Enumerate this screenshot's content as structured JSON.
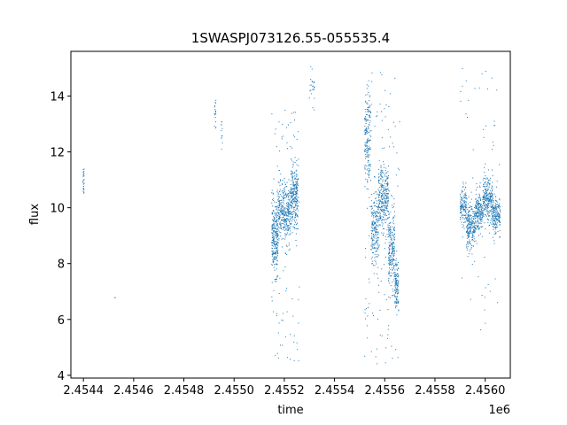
{
  "chart_data": {
    "type": "scatter",
    "title": "1SWASPJ073126.55-055535.4",
    "xlabel": "time",
    "ylabel": "flux",
    "x_offset_label": "1e6",
    "xlim": [
      2454350,
      2456100
    ],
    "ylim": [
      3.9,
      15.6
    ],
    "x_ticks": [
      2454400,
      2454600,
      2454800,
      2455000,
      2455200,
      2455400,
      2455600,
      2455800,
      2456000
    ],
    "x_tick_labels": [
      "2.4544",
      "2.4546",
      "2.4548",
      "2.4550",
      "2.4552",
      "2.4554",
      "2.4556",
      "2.4558",
      "2.4560"
    ],
    "y_ticks": [
      4,
      6,
      8,
      10,
      12,
      14
    ],
    "y_tick_labels": [
      "4",
      "6",
      "8",
      "10",
      "12",
      "14"
    ],
    "grid": false,
    "legend": "none",
    "marker_color": "#1f77b4",
    "observation_groups": [
      {
        "x_range": [
          2454398,
          2454403
        ],
        "y_center": 11.0,
        "y_spread": 0.3,
        "density": 25
      },
      {
        "x_range": [
          2454525,
          2454527
        ],
        "y_center": 6.85,
        "y_spread": 0.05,
        "density": 2
      },
      {
        "x_range": [
          2454922,
          2454928
        ],
        "y_center": 13.5,
        "y_spread": 0.35,
        "density": 18
      },
      {
        "x_range": [
          2454948,
          2454955
        ],
        "y_center": 12.7,
        "y_spread": 0.25,
        "density": 12
      },
      {
        "x_range": [
          2455150,
          2455175
        ],
        "y_center": 8.9,
        "y_spread": 0.6,
        "density": 260
      },
      {
        "x_range": [
          2455175,
          2455225
        ],
        "y_center": 9.8,
        "y_spread": 0.5,
        "density": 320
      },
      {
        "x_range": [
          2455225,
          2455255
        ],
        "y_center": 10.4,
        "y_spread": 0.55,
        "density": 260
      },
      {
        "x_range": [
          2455300,
          2455320
        ],
        "y_center": 14.3,
        "y_spread": 0.4,
        "density": 25
      },
      {
        "x_range": [
          2455520,
          2455545
        ],
        "y_center": 12.4,
        "y_spread": 0.9,
        "density": 180
      },
      {
        "x_range": [
          2455545,
          2455575
        ],
        "y_center": 9.2,
        "y_spread": 0.6,
        "density": 200
      },
      {
        "x_range": [
          2455575,
          2455615
        ],
        "y_center": 10.3,
        "y_spread": 0.6,
        "density": 300
      },
      {
        "x_range": [
          2455615,
          2455640
        ],
        "y_center": 8.5,
        "y_spread": 0.7,
        "density": 200
      },
      {
        "x_range": [
          2455640,
          2455655
        ],
        "y_center": 7.2,
        "y_spread": 0.5,
        "density": 120
      },
      {
        "x_range": [
          2455900,
          2455925
        ],
        "y_center": 10.0,
        "y_spread": 0.35,
        "density": 140
      },
      {
        "x_range": [
          2455925,
          2455960
        ],
        "y_center": 9.3,
        "y_spread": 0.4,
        "density": 220
      },
      {
        "x_range": [
          2455960,
          2455990
        ],
        "y_center": 9.9,
        "y_spread": 0.35,
        "density": 200
      },
      {
        "x_range": [
          2455990,
          2456030
        ],
        "y_center": 10.3,
        "y_spread": 0.4,
        "density": 260
      },
      {
        "x_range": [
          2456030,
          2456060
        ],
        "y_center": 9.7,
        "y_spread": 0.35,
        "density": 180
      }
    ],
    "outlier_groups": [
      {
        "x_range": [
          2455150,
          2455260
        ],
        "y_range": [
          4.4,
          13.5
        ],
        "count": 110
      },
      {
        "x_range": [
          2455520,
          2455660
        ],
        "y_range": [
          4.4,
          15.0
        ],
        "count": 120
      },
      {
        "x_range": [
          2455900,
          2456060
        ],
        "y_range": [
          5.4,
          15.1
        ],
        "count": 60
      }
    ]
  }
}
